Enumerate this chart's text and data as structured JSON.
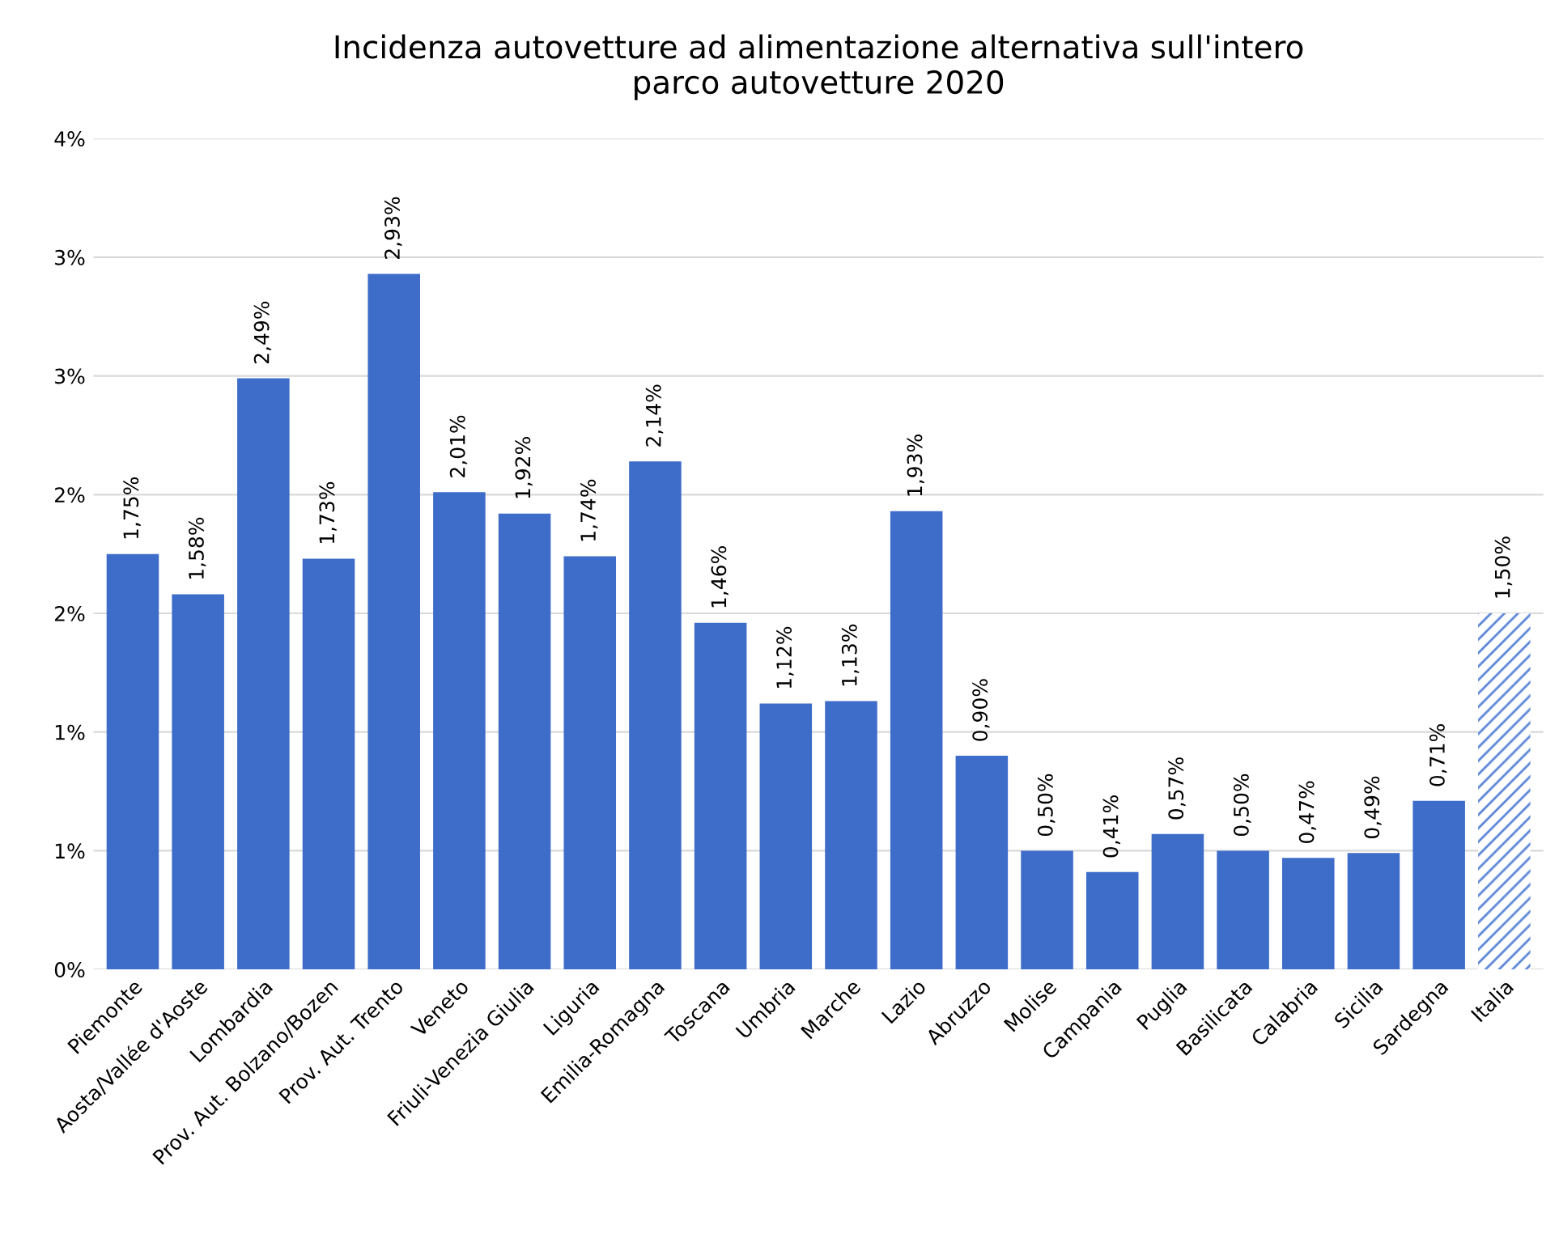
{
  "chart_data": {
    "type": "bar",
    "title": "Incidenza autovetture ad alimentazione alternativa sull'intero\nparco autovetture 2020",
    "categories": [
      "Piemonte",
      "Aosta/Vallée d'Aoste",
      "Lombardia",
      "Prov. Aut. Bolzano/Bozen",
      "Prov. Aut. Trento",
      "Veneto",
      "Friuli-Venezia Giulia",
      "Liguria",
      "Emilia-Romagna",
      "Toscana",
      "Umbria",
      "Marche",
      "Lazio",
      "Abruzzo",
      "Molise",
      "Campania",
      "Puglia",
      "Basilicata",
      "Calabria",
      "Sicilia",
      "Sardegna",
      "Italia"
    ],
    "values": [
      1.75,
      1.58,
      2.49,
      1.73,
      2.93,
      2.01,
      1.92,
      1.74,
      2.14,
      1.46,
      1.12,
      1.13,
      1.93,
      0.9,
      0.5,
      0.41,
      0.57,
      0.5,
      0.47,
      0.49,
      0.71,
      1.5
    ],
    "value_labels": [
      "1,75%",
      "1,58%",
      "2,49%",
      "1,73%",
      "2,93%",
      "2,01%",
      "1,92%",
      "1,74%",
      "2,14%",
      "1,46%",
      "1,12%",
      "1,13%",
      "1,93%",
      "0,90%",
      "0,50%",
      "0,41%",
      "0,57%",
      "0,50%",
      "0,47%",
      "0,49%",
      "0,71%",
      "1,50%"
    ],
    "colors": [
      "#3d6cc9",
      "#3d6cc9",
      "#3d6cc9",
      "#3d6cc9",
      "#3d6cc9",
      "#3d6cc9",
      "#3d6cc9",
      "#3d6cc9",
      "#3d6cc9",
      "#3d6cc9",
      "#3d6cc9",
      "#3d6cc9",
      "#3d6cc9",
      "#3d6cc9",
      "#3d6cc9",
      "#3d6cc9",
      "#3d6cc9",
      "#3d6cc9",
      "#3d6cc9",
      "#3d6cc9",
      "#3d6cc9",
      "#5b86d6"
    ],
    "ylim": [
      0,
      3.5
    ],
    "yticks": [
      {
        "value": 0,
        "label": "0%"
      },
      {
        "value": 0.5,
        "label": "1%"
      },
      {
        "value": 1,
        "label": "1%"
      },
      {
        "value": 1.5,
        "label": "2%"
      },
      {
        "value": 2,
        "label": "2%"
      },
      {
        "value": 2.5,
        "label": "3%"
      },
      {
        "value": 3,
        "label": "3%"
      },
      {
        "value": 3.5,
        "label": "4%"
      }
    ],
    "grid": "y",
    "legend": false
  }
}
